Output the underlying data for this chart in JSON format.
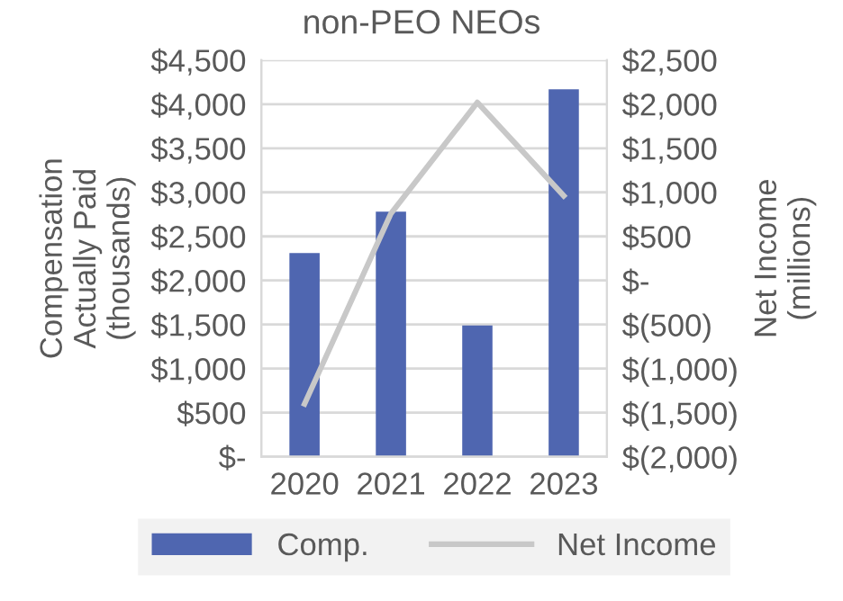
{
  "chart_data": {
    "type": "bar",
    "title": "non-PEO NEOs",
    "ylabel": "Compensation\nActually Paid\n(thousands)",
    "y2label": "Net Income\n(millions)",
    "categories": [
      "2020",
      "2021",
      "2022",
      "2023"
    ],
    "series": [
      {
        "name": "Comp.",
        "color": "#4f66b0",
        "values": [
          2310,
          2780,
          1490,
          4170
        ]
      },
      {
        "name": "Net Income",
        "type": "line",
        "axis": "y2",
        "color": "#c8c8c8",
        "values": [
          -1400,
          760,
          2020,
          960
        ]
      }
    ],
    "ylim": [
      0,
      4500
    ],
    "yticks": [
      {
        "value": 0,
        "label": "$-"
      },
      {
        "value": 500,
        "label": "$500"
      },
      {
        "value": 1000,
        "label": "$1,000"
      },
      {
        "value": 1500,
        "label": "$1,500"
      },
      {
        "value": 2000,
        "label": "$2,000"
      },
      {
        "value": 2500,
        "label": "$2,500"
      },
      {
        "value": 3000,
        "label": "$3,000"
      },
      {
        "value": 3500,
        "label": "$3,500"
      },
      {
        "value": 4000,
        "label": "$4,000"
      },
      {
        "value": 4500,
        "label": "$4,500"
      }
    ],
    "y2lim": [
      -2000,
      2500
    ],
    "y2ticks": [
      {
        "value": -2000,
        "label": "$(2,000)"
      },
      {
        "value": -1500,
        "label": "$(1,500)"
      },
      {
        "value": -1000,
        "label": "$(1,000)"
      },
      {
        "value": -500,
        "label": "$(500)"
      },
      {
        "value": 0,
        "label": "$-"
      },
      {
        "value": 500,
        "label": "$500"
      },
      {
        "value": 1000,
        "label": "$1,000"
      },
      {
        "value": 1500,
        "label": "$1,500"
      },
      {
        "value": 2000,
        "label": "$2,000"
      },
      {
        "value": 2500,
        "label": "$2,500"
      }
    ],
    "grid": "y",
    "legend": "bottom"
  }
}
